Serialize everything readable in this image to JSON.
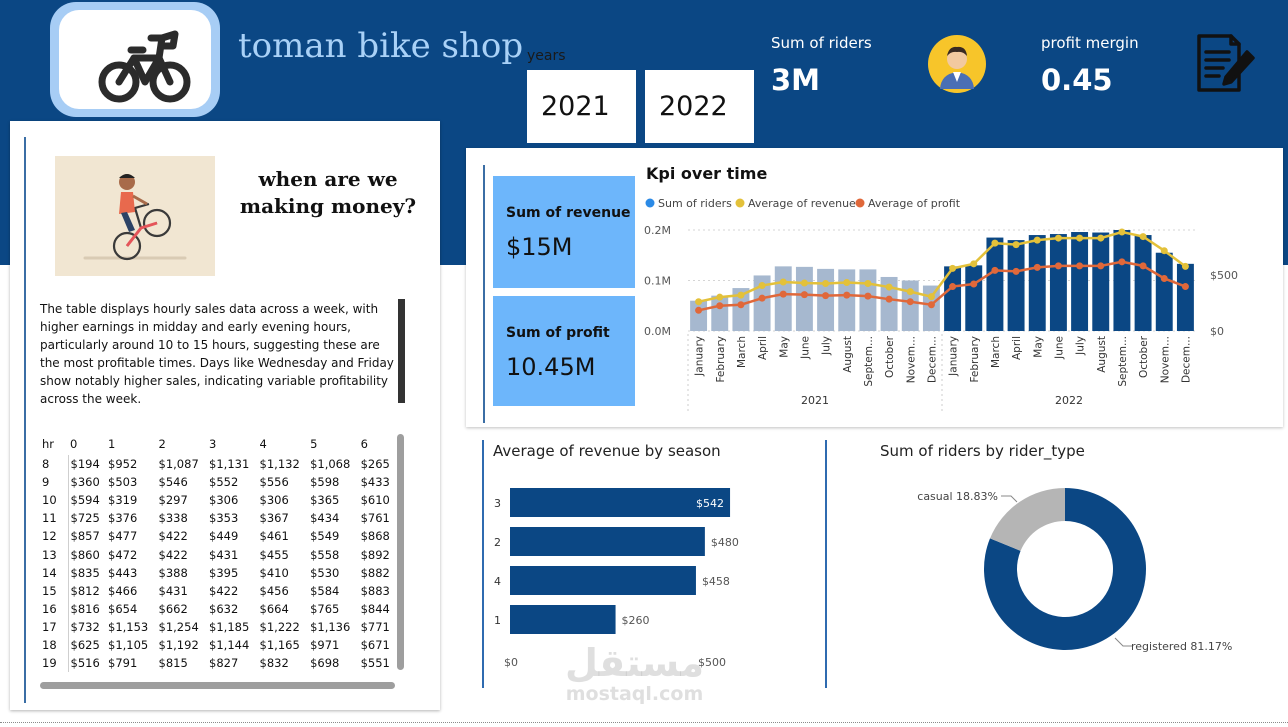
{
  "header": {
    "shop_title": "toman bike shop",
    "years_label": "years",
    "year_buttons": [
      "2021",
      "2022"
    ],
    "riders_label": "Sum of riders",
    "riders_value": "3M",
    "profit_margin_label": "profit mergin",
    "profit_margin_value": "0.45"
  },
  "icons": {
    "logo": "bicycle-icon",
    "rider": "person-avatar-icon",
    "report": "document-pen-icon"
  },
  "colors": {
    "banner": "#0b4784",
    "kpi_card": "#6db6fb",
    "bar_2021": "#a6b8cf",
    "bar_2022": "#0b4784",
    "revenue_line": "#e3c13a",
    "profit_line": "#e0683a",
    "riders_legend": "#2b8ae6",
    "casual": "#b5b5b5"
  },
  "left_panel": {
    "question": "when are  we making money?",
    "description": "The table displays hourly sales data across a week, with higher earnings in midday and early evening hours, particularly around 10 to 15 hours, suggesting these are the most profitable times. Days like Wednesday and Friday show notably higher sales, indicating variable profitability across the week.",
    "table": {
      "columns": [
        "hr",
        "0",
        "1",
        "2",
        "3",
        "4",
        "5",
        "6"
      ],
      "rows": [
        [
          "8",
          "$194",
          "$952",
          "$1,087",
          "$1,131",
          "$1,132",
          "$1,068",
          "$265"
        ],
        [
          "9",
          "$360",
          "$503",
          "$546",
          "$552",
          "$556",
          "$598",
          "$433"
        ],
        [
          "10",
          "$594",
          "$319",
          "$297",
          "$306",
          "$306",
          "$365",
          "$610"
        ],
        [
          "11",
          "$725",
          "$376",
          "$338",
          "$353",
          "$367",
          "$434",
          "$761"
        ],
        [
          "12",
          "$857",
          "$477",
          "$422",
          "$449",
          "$461",
          "$549",
          "$868"
        ],
        [
          "13",
          "$860",
          "$472",
          "$422",
          "$431",
          "$455",
          "$558",
          "$892"
        ],
        [
          "14",
          "$835",
          "$443",
          "$388",
          "$395",
          "$410",
          "$530",
          "$882"
        ],
        [
          "15",
          "$812",
          "$466",
          "$431",
          "$422",
          "$456",
          "$584",
          "$883"
        ],
        [
          "16",
          "$816",
          "$654",
          "$662",
          "$632",
          "$664",
          "$765",
          "$844"
        ],
        [
          "17",
          "$732",
          "$1,153",
          "$1,254",
          "$1,185",
          "$1,222",
          "$1,136",
          "$771"
        ],
        [
          "18",
          "$625",
          "$1,105",
          "$1,192",
          "$1,144",
          "$1,165",
          "$971",
          "$671"
        ],
        [
          "19",
          "$516",
          "$791",
          "$815",
          "$827",
          "$832",
          "$698",
          "$551"
        ]
      ]
    }
  },
  "kpi_cards": {
    "revenue_label": "Sum of revenue",
    "revenue_value": "$15M",
    "profit_label": "Sum of profit",
    "profit_value": "10.45M"
  },
  "chart_data": [
    {
      "type": "bar",
      "title": "Kpi over time",
      "legend": [
        "Sum of riders",
        "Average of revenue",
        "Average of profit"
      ],
      "legend_placement": "top-left",
      "categories": [
        "January",
        "February",
        "March",
        "April",
        "May",
        "June",
        "July",
        "August",
        "Septem...",
        "October",
        "Novem...",
        "Decem...",
        "January",
        "February",
        "March",
        "April",
        "May",
        "June",
        "July",
        "August",
        "Septem...",
        "October",
        "Novem...",
        "Decem..."
      ],
      "year_groups": [
        {
          "label": "2021",
          "count": 12
        },
        {
          "label": "2022",
          "count": 12
        }
      ],
      "y_left_ticks": [
        "0.0M",
        "0.1M",
        "0.2M"
      ],
      "y_left_range": [
        0,
        0.2
      ],
      "y_right_ticks": [
        "$0",
        "$500"
      ],
      "y_right_range": [
        0,
        900
      ],
      "series": [
        {
          "name": "Sum of riders",
          "chart": "bar",
          "axis": "left",
          "values": [
            0.06,
            0.07,
            0.085,
            0.11,
            0.128,
            0.127,
            0.123,
            0.122,
            0.122,
            0.107,
            0.1,
            0.09,
            0.128,
            0.13,
            0.185,
            0.18,
            0.19,
            0.192,
            0.196,
            0.195,
            0.2,
            0.19,
            0.155,
            0.133
          ]
        },
        {
          "name": "Average of revenue",
          "chart": "line",
          "axis": "left",
          "values": [
            0.058,
            0.067,
            0.071,
            0.09,
            0.097,
            0.095,
            0.094,
            0.096,
            0.094,
            0.087,
            0.078,
            0.068,
            0.124,
            0.133,
            0.174,
            0.171,
            0.18,
            0.184,
            0.184,
            0.184,
            0.196,
            0.187,
            0.159,
            0.128
          ]
        },
        {
          "name": "Average of profit",
          "chart": "line",
          "axis": "left",
          "values": [
            0.041,
            0.05,
            0.052,
            0.065,
            0.073,
            0.072,
            0.07,
            0.071,
            0.069,
            0.063,
            0.058,
            0.052,
            0.088,
            0.093,
            0.12,
            0.118,
            0.126,
            0.129,
            0.129,
            0.129,
            0.137,
            0.129,
            0.104,
            0.088
          ]
        }
      ]
    },
    {
      "type": "bar",
      "orientation": "horizontal",
      "title": "Average of revenue by season",
      "categories": [
        "3",
        "2",
        "4",
        "1"
      ],
      "values": [
        542,
        480,
        458,
        260
      ],
      "data_labels": [
        "$542",
        "$480",
        "$458",
        "$260"
      ],
      "x_range": [
        0,
        500
      ],
      "x_ticks": [
        "$0",
        "$500"
      ]
    },
    {
      "type": "pie",
      "donut": true,
      "title": "Sum of riders by rider_type",
      "slices": [
        {
          "label": "registered 81.17%",
          "value": 81.17,
          "color": "#0b4784"
        },
        {
          "label": "casual 18.83%",
          "value": 18.83,
          "color": "#b5b5b5"
        }
      ]
    }
  ],
  "watermark": {
    "arabic": "مستقل",
    "latin": "mostaql.com"
  }
}
